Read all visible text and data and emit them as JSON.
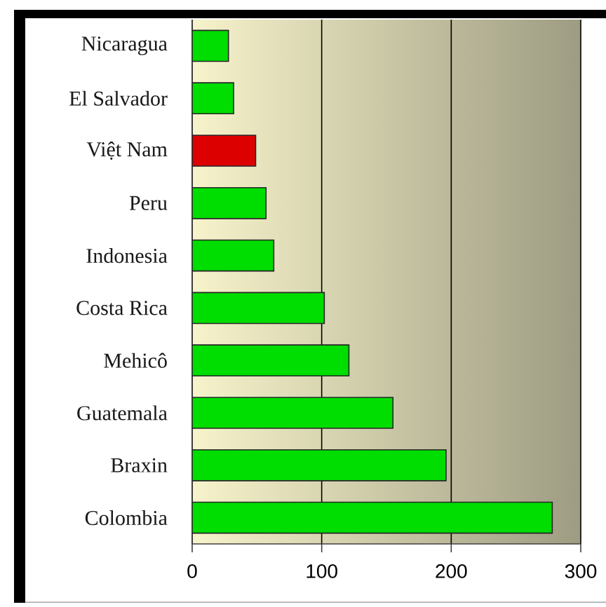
{
  "chart_data": {
    "type": "bar",
    "orientation": "horizontal",
    "categories": [
      "Nicaragua",
      "El Salvador",
      "Việt Nam",
      "Peru",
      "Indonesia",
      "Costa Rica",
      "Mehicô",
      "Guatemala",
      "Braxin",
      "Colombia"
    ],
    "values": [
      28,
      32,
      49,
      57,
      63,
      102,
      121,
      155,
      196,
      278
    ],
    "colors": [
      "#00dd00",
      "#00dd00",
      "#dd0000",
      "#00dd00",
      "#00dd00",
      "#00dd00",
      "#00dd00",
      "#00dd00",
      "#00dd00",
      "#00dd00"
    ],
    "xlim": [
      0,
      300
    ],
    "xticks": [
      0,
      100,
      200,
      300
    ],
    "grid": "x"
  }
}
